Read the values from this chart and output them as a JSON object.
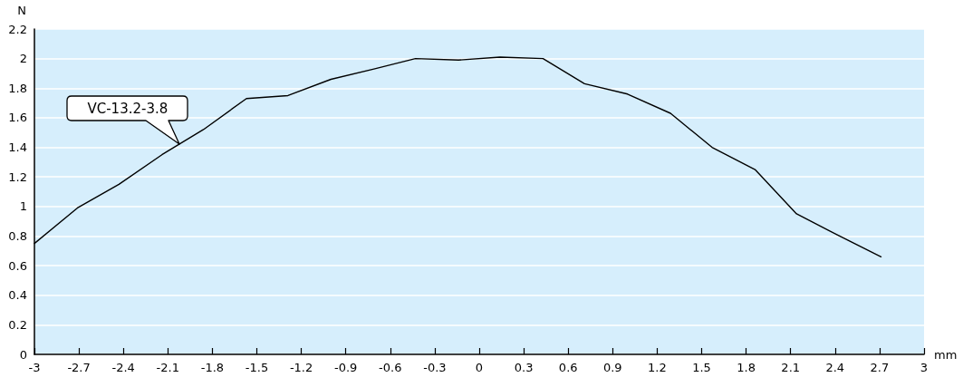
{
  "chart_data": {
    "type": "line",
    "xlabel": "mm",
    "ylabel": "N",
    "x": [
      -3,
      -2.71,
      -2.43,
      -2.14,
      -1.86,
      -1.57,
      -1.29,
      -1,
      -0.71,
      -0.43,
      -0.14,
      0.14,
      0.43,
      0.71,
      1,
      1.29,
      1.57,
      1.86,
      2.14,
      2.43,
      2.71
    ],
    "series": [
      {
        "color": "#000000",
        "values": [
          0.75,
          0.99,
          1.15,
          1.35,
          1.52,
          1.73,
          1.75,
          1.86,
          1.93,
          2.0,
          1.99,
          2.01,
          2.0,
          1.83,
          1.76,
          1.63,
          1.4,
          1.25,
          0.95,
          0.8,
          0.66
        ]
      }
    ],
    "xlim": [
      -3,
      3
    ],
    "xticks": [
      -3,
      -2.7,
      -2.4,
      -2.1,
      -1.8,
      -1.5,
      -1.2,
      -0.9,
      -0.6,
      -0.3,
      0,
      0.3,
      0.6,
      0.9,
      1.2,
      1.5,
      1.8,
      2.1,
      2.4,
      2.7,
      3
    ],
    "ylim": [
      0,
      2.2
    ],
    "yticks": [
      0,
      0.2,
      0.4,
      0.6,
      0.8,
      1,
      1.2,
      1.4,
      1.6,
      1.8,
      2,
      2.2
    ],
    "grid": "y",
    "marker": "none",
    "line_style": "solid",
    "annotations": [
      {
        "text": "VC-13.2-3.8",
        "x": -2.02,
        "y": 1.42
      }
    ]
  }
}
